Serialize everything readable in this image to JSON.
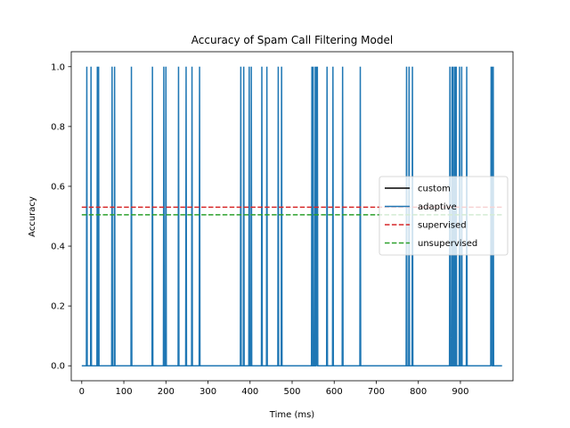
{
  "chart_data": {
    "type": "line",
    "title": "Accuracy of Spam Call Filtering Model",
    "xlabel": "Time (ms)",
    "ylabel": "Accuracy",
    "xlim": [
      -25,
      1025
    ],
    "ylim": [
      -0.05,
      1.05
    ],
    "xticks": [
      0,
      100,
      200,
      300,
      400,
      500,
      600,
      700,
      800,
      900
    ],
    "xtick_labels": [
      "0",
      "100",
      "200",
      "300",
      "400",
      "500",
      "600",
      "700",
      "800",
      "900"
    ],
    "yticks": [
      0.0,
      0.2,
      0.4,
      0.6,
      0.8,
      1.0
    ],
    "ytick_labels": [
      "0.0",
      "0.2",
      "0.4",
      "0.6",
      "0.8",
      "1.0"
    ],
    "grid": false,
    "legend": "center-right",
    "series": [
      {
        "name": "custom",
        "color": "#000000",
        "style": "solid",
        "x": [],
        "y": []
      },
      {
        "name": "adaptive",
        "color": "#1f77b4",
        "style": "solid",
        "x_range": [
          0,
          999
        ],
        "baseline": 0,
        "pulse_value": 1,
        "pulse_x": [
          12,
          22,
          37,
          40,
          72,
          78,
          118,
          168,
          195,
          200,
          230,
          248,
          262,
          280,
          378,
          385,
          398,
          403,
          428,
          440,
          467,
          475,
          547,
          550,
          555,
          558,
          560,
          583,
          597,
          620,
          662,
          772,
          778,
          786,
          875,
          880,
          883,
          887,
          890,
          898,
          903,
          915,
          973,
          975,
          978
        ]
      },
      {
        "name": "supervised",
        "color": "#d62728",
        "style": "dashed",
        "x": [
          0,
          999
        ],
        "y": [
          0.53,
          0.53
        ]
      },
      {
        "name": "unsupervised",
        "color": "#2ca02c",
        "style": "dashed",
        "x": [
          0,
          999
        ],
        "y": [
          0.505,
          0.505
        ]
      }
    ]
  }
}
